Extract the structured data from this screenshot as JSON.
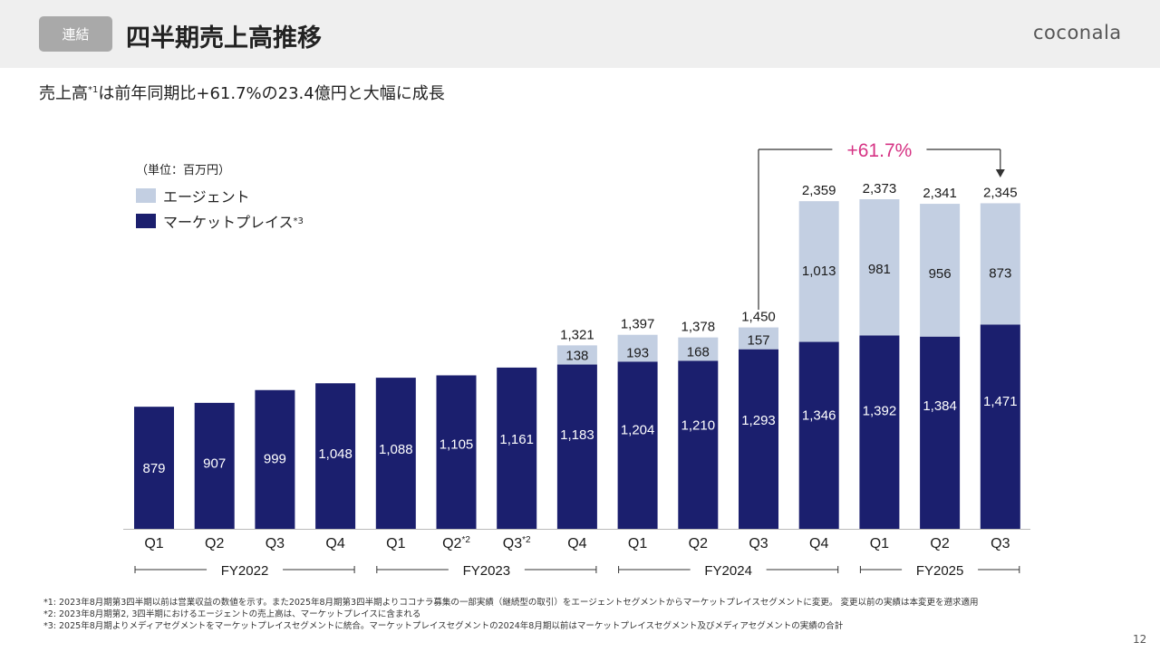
{
  "header": {
    "badge": "連結",
    "title": "四半期売上高推移",
    "logo": "coconala"
  },
  "subtitle": {
    "prefix": "売上高",
    "sup": "*1",
    "suffix": "は前年同期比+61.7%の23.4億円と大幅に成長"
  },
  "unit_label": "（単位：百万円）",
  "legend": {
    "agent": "エージェント",
    "marketplace": "マーケットプレイス",
    "marketplace_sup": "*3"
  },
  "growth_label": "+61.7%",
  "colors": {
    "agent": "#c3cfe2",
    "marketplace": "#1b1f6e",
    "growth": "#d63384"
  },
  "chart_data": {
    "type": "bar",
    "stacked": true,
    "categories": [
      "Q1",
      "Q2",
      "Q3",
      "Q4",
      "Q1",
      "Q2",
      "Q3",
      "Q4",
      "Q1",
      "Q2",
      "Q3",
      "Q4",
      "Q1",
      "Q2",
      "Q3"
    ],
    "category_sups": [
      "",
      "",
      "",
      "",
      "",
      "*2",
      "*2",
      "",
      "",
      "",
      "",
      "",
      "",
      "",
      ""
    ],
    "groups": [
      {
        "label": "FY2022",
        "from": 0,
        "to": 3
      },
      {
        "label": "FY2023",
        "from": 4,
        "to": 7
      },
      {
        "label": "FY2024",
        "from": 8,
        "to": 11
      },
      {
        "label": "FY2025",
        "from": 12,
        "to": 14
      }
    ],
    "series": [
      {
        "name": "マーケットプレイス",
        "values": [
          879,
          907,
          999,
          1048,
          1088,
          1105,
          1161,
          1183,
          1204,
          1210,
          1293,
          1346,
          1392,
          1384,
          1471
        ]
      },
      {
        "name": "エージェント",
        "values": [
          null,
          null,
          null,
          null,
          null,
          null,
          null,
          138,
          193,
          168,
          157,
          1013,
          981,
          956,
          873
        ]
      }
    ],
    "totals": [
      null,
      null,
      null,
      null,
      null,
      null,
      null,
      1321,
      1397,
      1378,
      1450,
      2359,
      2373,
      2341,
      2345
    ],
    "value_labels_mp": [
      "879",
      "907",
      "999",
      "1,048",
      "1,088",
      "1,105",
      "1,161",
      "1,183",
      "1,204",
      "1,210",
      "1,293",
      "1,346",
      "1,392",
      "1,384",
      "1,471"
    ],
    "value_labels_ag": [
      "",
      "",
      "",
      "",
      "",
      "",
      "",
      "138",
      "193",
      "168",
      "157",
      "1,013",
      "981",
      "956",
      "873"
    ],
    "total_labels": [
      "",
      "",
      "",
      "",
      "",
      "",
      "",
      "1,321",
      "1,397",
      "1,378",
      "1,450",
      "2,359",
      "2,373",
      "2,341",
      "2,345"
    ],
    "ylim": [
      0,
      2373
    ]
  },
  "footnotes": [
    "*1: 2023年8月期第3四半期以前は営業収益の数値を示す。また2025年8月期第3四半期よりココナラ募集の一部実績（継続型の取引）をエージェントセグメントからマーケットプレイスセグメントに変更。 変更以前の実績は本変更を遡求適用",
    "*2: 2023年8月期第2, 3四半期におけるエージェントの売上高は、マーケットプレイスに含まれる",
    "*3: 2025年8月期よりメディアセグメントをマーケットプレイスセグメントに統合。マーケットプレイスセグメントの2024年8月期以前はマーケットプレイスセグメント及びメディアセグメントの実績の合計"
  ],
  "page_number": "12"
}
